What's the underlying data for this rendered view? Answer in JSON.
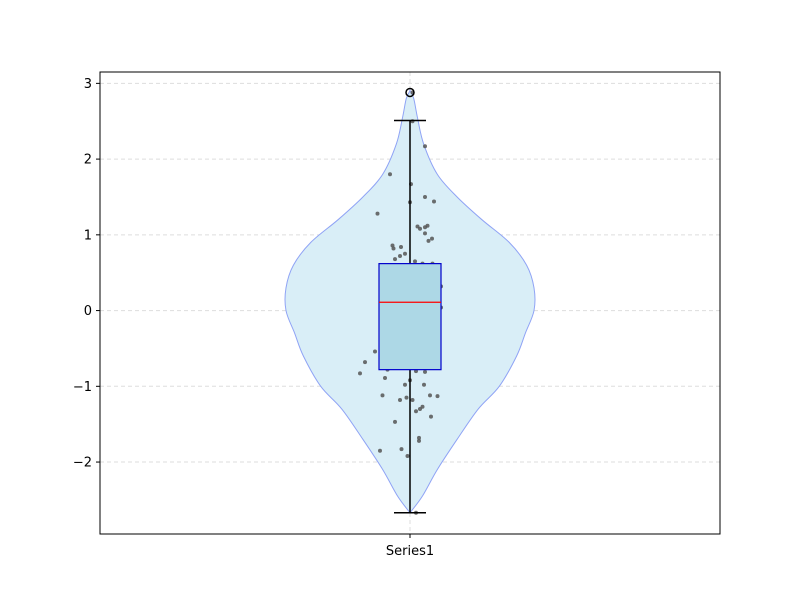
{
  "chart_data": {
    "type": "violin",
    "title": "",
    "xlabel": "",
    "ylabel": "",
    "categories": [
      "Series1"
    ],
    "ylim": [
      -2.95,
      3.15
    ],
    "yticks": [
      -2,
      -1,
      0,
      1,
      2,
      3
    ],
    "ytick_labels": [
      "−2",
      "−1",
      "0",
      "1",
      "2",
      "3"
    ],
    "grid": true,
    "colors": {
      "violin_fill": "#d9eef7",
      "violin_edge": "#8fa3f5",
      "box_fill": "#add8e6",
      "box_edge": "#0000cc",
      "median": "#ff0000",
      "whisker": "#000000",
      "points": "#555555",
      "grid": "#dddddd"
    },
    "series": [
      {
        "category": "Series1",
        "box": {
          "q1": -0.78,
          "median": 0.11,
          "q3": 0.62,
          "whisker_low": -2.67,
          "whisker_high": 2.51
        },
        "outliers": [
          2.88
        ],
        "points": [
          [
            -0.4,
            1.8
          ],
          [
            -0.65,
            1.28
          ],
          [
            0.3,
            2.17
          ],
          [
            0.48,
            1.44
          ],
          [
            0.3,
            1.5
          ],
          [
            0.02,
            1.67
          ],
          [
            0.0,
            1.43
          ],
          [
            0.05,
            2.5
          ],
          [
            -0.35,
            0.86
          ],
          [
            -0.33,
            0.82
          ],
          [
            -0.18,
            0.84
          ],
          [
            -0.1,
            0.75
          ],
          [
            0.15,
            1.11
          ],
          [
            0.2,
            1.08
          ],
          [
            0.3,
            1.1
          ],
          [
            0.35,
            1.12
          ],
          [
            0.3,
            1.02
          ],
          [
            0.37,
            0.92
          ],
          [
            0.44,
            0.95
          ],
          [
            -0.3,
            0.68
          ],
          [
            -0.2,
            0.72
          ],
          [
            -0.45,
            0.57
          ],
          [
            0.1,
            0.65
          ],
          [
            0.25,
            0.62
          ],
          [
            0.45,
            0.62
          ],
          [
            0.5,
            0.45
          ],
          [
            0.62,
            0.32
          ],
          [
            0.62,
            0.04
          ],
          [
            0.45,
            -0.07
          ],
          [
            0.46,
            -0.21
          ],
          [
            -1.0,
            -0.83
          ],
          [
            -0.9,
            -0.68
          ],
          [
            -0.7,
            -0.54
          ],
          [
            -0.45,
            -0.78
          ],
          [
            -0.5,
            -0.89
          ],
          [
            -0.55,
            -1.12
          ],
          [
            -0.1,
            -0.98
          ],
          [
            0.0,
            -0.92
          ],
          [
            0.12,
            -0.8
          ],
          [
            0.3,
            -0.81
          ],
          [
            0.28,
            -0.98
          ],
          [
            -0.2,
            -1.18
          ],
          [
            -0.07,
            -1.15
          ],
          [
            0.05,
            -1.18
          ],
          [
            0.2,
            -1.3
          ],
          [
            0.25,
            -1.27
          ],
          [
            0.12,
            -1.33
          ],
          [
            0.4,
            -1.12
          ],
          [
            0.55,
            -1.13
          ],
          [
            0.42,
            -1.4
          ],
          [
            -0.3,
            -1.47
          ],
          [
            0.18,
            -1.68
          ],
          [
            0.18,
            -1.72
          ],
          [
            -0.17,
            -1.83
          ],
          [
            -0.05,
            -1.92
          ],
          [
            -0.6,
            -1.85
          ],
          [
            0.12,
            -2.67
          ],
          [
            0.05,
            2.88
          ]
        ],
        "violin_density": [
          [
            -2.67,
            0.0
          ],
          [
            -2.45,
            0.1
          ],
          [
            -2.1,
            0.22
          ],
          [
            -1.7,
            0.38
          ],
          [
            -1.3,
            0.55
          ],
          [
            -1.0,
            0.72
          ],
          [
            -0.6,
            0.86
          ],
          [
            -0.3,
            0.93
          ],
          [
            0.0,
            1.0
          ],
          [
            0.3,
            1.0
          ],
          [
            0.6,
            0.94
          ],
          [
            0.9,
            0.8
          ],
          [
            1.2,
            0.58
          ],
          [
            1.5,
            0.38
          ],
          [
            1.8,
            0.22
          ],
          [
            2.2,
            0.11
          ],
          [
            2.55,
            0.06
          ],
          [
            2.8,
            0.03
          ],
          [
            2.9,
            0.0
          ]
        ]
      }
    ]
  }
}
